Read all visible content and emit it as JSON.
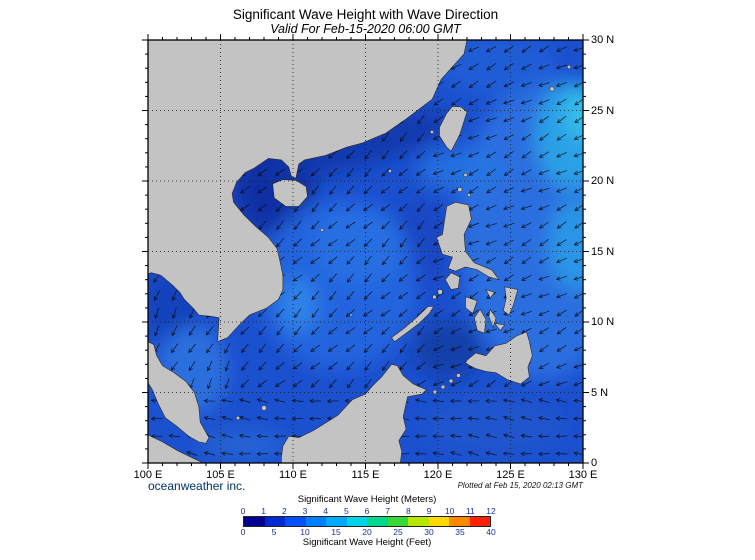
{
  "title": "Significant Wave Height with Wave Direction",
  "subtitle": "Valid For Feb-15-2020 06:00 GMT",
  "credit": "oceanweather inc.",
  "plotted": "Plotted at Feb 15, 2020 02:13 GMT",
  "axes": {
    "lon": [
      "100 E",
      "105 E",
      "110 E",
      "115 E",
      "120 E",
      "125 E",
      "130 E"
    ],
    "lat": [
      "30 N",
      "25 N",
      "20 N",
      "15 N",
      "10 N",
      "5 N",
      "0"
    ]
  },
  "legend": {
    "meters_label": "Significant Wave Height (Meters)",
    "feet_label": "Significant Wave Height (Feet)",
    "meters_ticks": [
      "0",
      "1",
      "2",
      "3",
      "4",
      "5",
      "6",
      "7",
      "8",
      "9",
      "10",
      "11",
      "12"
    ],
    "feet_ticks": [
      "0",
      "5",
      "10",
      "15",
      "20",
      "25",
      "30",
      "35",
      "40"
    ],
    "colors": [
      "#000090",
      "#0028d0",
      "#0050ff",
      "#0080ff",
      "#00aaff",
      "#00d4e6",
      "#00d890",
      "#38d838",
      "#b8e800",
      "#ffd800",
      "#ff8800",
      "#ff2000"
    ]
  },
  "map": {
    "ocean_base": "#1b50cf",
    "land_color": "#c3c3c3",
    "coast_color": "#2a2a2a",
    "arrow_color": "#0a0a0a",
    "grid_color": "#1a1a1a"
  }
}
